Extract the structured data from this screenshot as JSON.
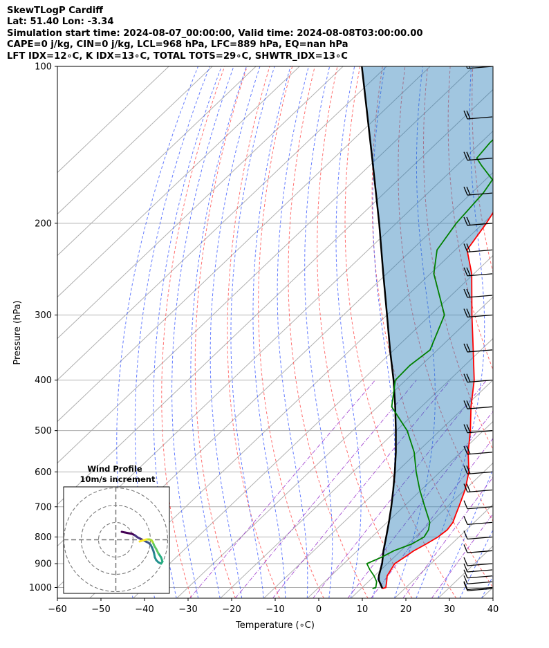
{
  "header": {
    "line1": "SkewTLogP Cardiff",
    "line2": "Lat: 51.40   Lon: -3.34",
    "line3": "Simulation start time: 2024-08-07_00:00:00, Valid time: 2024-08-08T03:00:00.00",
    "line4": "CAPE=0 j/kg, CIN=0 j/kg, LCL=968 hPa, LFC=889 hPa, EQ=nan hPa",
    "line5": "LFT IDX=12$^\\circ$C, K IDX=13$^\\circ$C, TOTAL TOTS=29$^\\circ$C, SHWTR_IDX=13$^\\circ$C"
  },
  "header_display": {
    "line5": "LFT IDX=12∘C, K IDX=13∘C, TOTAL TOTS=29∘C, SHWTR_IDX=13∘C"
  },
  "chart_data": {
    "type": "line",
    "chart_kind": "skew-t log-p",
    "xlabel": "Temperature (∘C)",
    "ylabel": "Pressure (hPa)",
    "xlim": [
      -60,
      40
    ],
    "ylim": [
      1050,
      100
    ],
    "y_scale": "log",
    "grid": true,
    "x_ticks": [
      "−60",
      "−50",
      "−40",
      "−30",
      "−20",
      "−10",
      "0",
      "10",
      "20",
      "30",
      "40"
    ],
    "x_tick_values": [
      -60,
      -50,
      -40,
      -30,
      -20,
      -10,
      0,
      10,
      20,
      30,
      40
    ],
    "y_ticks": [
      "1000",
      "900",
      "800",
      "700",
      "600",
      "500",
      "400",
      "300",
      "200",
      "100"
    ],
    "y_tick_values": [
      1000,
      900,
      800,
      700,
      600,
      500,
      400,
      300,
      200,
      100
    ],
    "temperature": {
      "color": "#ff0000",
      "points": [
        [
          1005,
          14.9
        ],
        [
          1000,
          15.4
        ],
        [
          975,
          14.2
        ],
        [
          950,
          12.9
        ],
        [
          925,
          12.3
        ],
        [
          900,
          11.7
        ],
        [
          875,
          12.4
        ],
        [
          850,
          13.0
        ],
        [
          825,
          14.2
        ],
        [
          800,
          15.2
        ],
        [
          775,
          15.6
        ],
        [
          750,
          15.1
        ],
        [
          725,
          13.9
        ],
        [
          700,
          12.7
        ],
        [
          650,
          10.1
        ],
        [
          600,
          6.6
        ],
        [
          550,
          1.7
        ],
        [
          500,
          -3.0
        ],
        [
          450,
          -8.6
        ],
        [
          400,
          -14.3
        ],
        [
          350,
          -21.8
        ],
        [
          300,
          -30.5
        ],
        [
          250,
          -40.5
        ],
        [
          225,
          -47.3
        ],
        [
          200,
          -49.3
        ],
        [
          190,
          -50.4
        ],
        [
          180,
          -51.7
        ],
        [
          175,
          -52.3
        ],
        [
          170,
          -53.0
        ],
        [
          165,
          -53.8
        ],
        [
          160,
          -55.2
        ],
        [
          150,
          -56.7
        ],
        [
          140,
          -58.2
        ],
        [
          130,
          -59.1
        ],
        [
          125,
          -59.2
        ],
        [
          120,
          -59.6
        ],
        [
          110,
          -61.3
        ],
        [
          100,
          -62.8
        ]
      ]
    },
    "dewpoint": {
      "color": "#008000",
      "points": [
        [
          1005,
          12.6
        ],
        [
          1000,
          13.1
        ],
        [
          975,
          11.9
        ],
        [
          950,
          9.9
        ],
        [
          925,
          7.5
        ],
        [
          900,
          5.3
        ],
        [
          875,
          7.1
        ],
        [
          850,
          8.4
        ],
        [
          825,
          10.9
        ],
        [
          800,
          12.0
        ],
        [
          775,
          11.3
        ],
        [
          750,
          9.8
        ],
        [
          700,
          4.9
        ],
        [
          650,
          -0.3
        ],
        [
          600,
          -5.5
        ],
        [
          550,
          -10.7
        ],
        [
          500,
          -17.5
        ],
        [
          450,
          -26.8
        ],
        [
          400,
          -32.4
        ],
        [
          375,
          -32.6
        ],
        [
          350,
          -31.7
        ],
        [
          300,
          -36.8
        ],
        [
          250,
          -49.2
        ],
        [
          225,
          -54.2
        ],
        [
          200,
          -56.2
        ],
        [
          175,
          -57.3
        ],
        [
          165,
          -58.4
        ],
        [
          155,
          -64.3
        ],
        [
          150,
          -67.2
        ],
        [
          140,
          -67.9
        ],
        [
          130,
          -67.8
        ],
        [
          120,
          -68.8
        ],
        [
          100,
          -75.5
        ]
      ]
    },
    "parcel": {
      "color": "#000000",
      "points": [
        [
          1005,
          14.9
        ],
        [
          968,
          12.0
        ],
        [
          950,
          11.0
        ],
        [
          900,
          8.8
        ],
        [
          850,
          6.0
        ],
        [
          800,
          3.3
        ],
        [
          750,
          0.4
        ],
        [
          700,
          -2.8
        ],
        [
          650,
          -6.4
        ],
        [
          600,
          -10.4
        ],
        [
          550,
          -14.9
        ],
        [
          500,
          -20.1
        ],
        [
          450,
          -26.0
        ],
        [
          400,
          -32.8
        ],
        [
          350,
          -40.9
        ],
        [
          300,
          -50.0
        ],
        [
          250,
          -60.8
        ],
        [
          200,
          -73.9
        ],
        [
          150,
          -91.2
        ],
        [
          100,
          -115.7
        ]
      ]
    },
    "shading": "cape/cin region between parcel and temperature (light blue)",
    "reference_lines": [
      "isotherms (gray)",
      "dry adiabats (red dashed)",
      "moist adiabats (blue dashed)",
      "mixing ratio lines (purple dash-dot)"
    ],
    "wind_barbs_pressure_hPa": [
      1005,
      1000,
      975,
      950,
      925,
      900,
      850,
      800,
      750,
      700,
      650,
      600,
      550,
      500,
      450,
      400,
      350,
      300,
      275,
      250,
      225,
      200,
      175,
      150,
      125,
      100
    ],
    "hodograph": {
      "title": "Wind Profile",
      "subtitle": "10m/s increment",
      "rings_ms": [
        10,
        20,
        30
      ],
      "colormap": "viridis"
    }
  }
}
